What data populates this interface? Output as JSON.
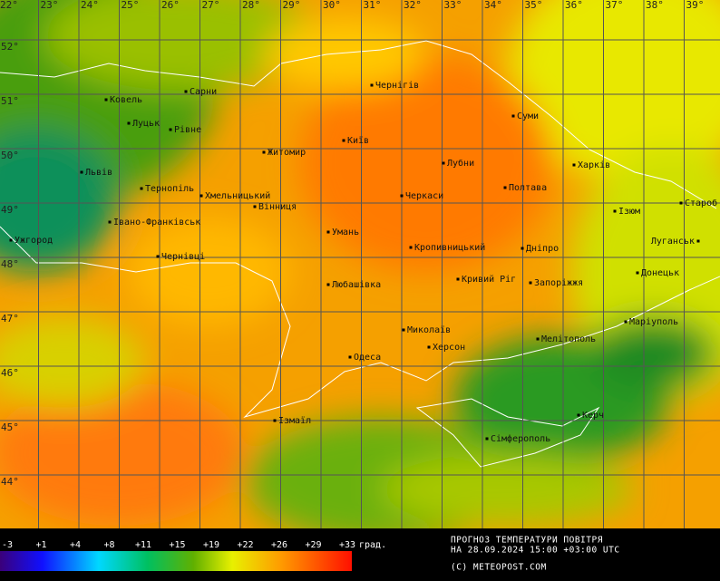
{
  "map": {
    "lon_labels": [
      "22°",
      "23°",
      "24°",
      "25°",
      "26°",
      "27°",
      "28°",
      "29°",
      "30°",
      "31°",
      "32°",
      "33°",
      "34°",
      "35°",
      "36°",
      "37°",
      "38°",
      "39°"
    ],
    "lat_labels": [
      "52°",
      "51°",
      "50°",
      "49°",
      "48°",
      "47°",
      "46°",
      "45°",
      "44°"
    ],
    "cities": [
      "Ковель",
      "Сарни",
      "Луцьк",
      "Рівне",
      "Чернігів",
      "Суми",
      "Київ",
      "Житомир",
      "Львів",
      "Лубни",
      "Харків",
      "Тернопіль",
      "Хмельницький",
      "Полтава",
      "Черкаси",
      "Вінниця",
      "Ізюм",
      "Староб",
      "Івано-Франківськ",
      "Ужгород",
      "Умань",
      "Луганськ",
      "Кропивницький",
      "Дніпро",
      "Чернівці",
      "Донецьк",
      "Кривий Ріг",
      "Запоріжжя",
      "Любашівка",
      "Маріуполь",
      "Миколаїв",
      "Мелітополь",
      "Херсон",
      "Одеса",
      "Керч",
      "Ізмаїл",
      "Сімферополь"
    ]
  },
  "legend": {
    "labels": [
      "-3",
      "+1",
      "+4",
      "+8",
      "+11",
      "+15",
      "+19",
      "+22",
      "+26",
      "+29",
      "+33"
    ],
    "unit": "град."
  },
  "caption": {
    "title": "ПРОГНОЗ ТЕМПЕРАТУРИ ПОВІТРЯ",
    "date": "НА 28.09.2024 15:00 +03:00 UTC",
    "copyright": "(C) METEOPOST.COM"
  }
}
